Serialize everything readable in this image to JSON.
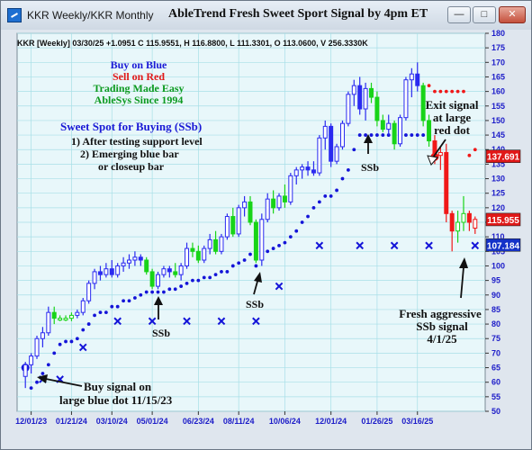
{
  "window": {
    "title": "KKR Weekly/KKR Monthly",
    "heading": "AbleTrend Fresh Sweet Sport Signal by 4pm ET",
    "minimize_icon": "minimize-icon",
    "maximize_icon": "maximize-icon",
    "close_icon": "close-icon"
  },
  "info_line": "KKR [Weekly] 03/30/25 +1.0951 C 115.9551, H 116.8800, L 111.3301, O 113.0600, V 256.3330K",
  "legend_lines": [
    {
      "text": "Buy on Blue",
      "color": "#1a1ad6"
    },
    {
      "text": "Sell on Red",
      "color": "#e01818"
    },
    {
      "text": "Trading Made Easy",
      "color": "#0c9a20"
    },
    {
      "text": "AbleSys Since 1994",
      "color": "#0c9a20"
    }
  ],
  "sweet_spot": {
    "title": "Sweet Spot for Buying (SSb)",
    "line1": "1) After testing support level",
    "line2": "2) Emerging blue bar",
    "line3": "or closeup bar"
  },
  "annotations": {
    "ssb_label": "SSb",
    "exit_line1": "Exit signal",
    "exit_line2": "at large",
    "exit_line3": "red dot",
    "fresh_line1": "Fresh aggressive",
    "fresh_line2": "SSb signal",
    "fresh_line3": "4/1/25",
    "buy_line1": "Buy signal on",
    "buy_line2": "large blue dot 11/15/23"
  },
  "price_tags": [
    {
      "value": "137.691",
      "color": "#e01818"
    },
    {
      "value": "115.955",
      "color": "#e01818"
    },
    {
      "value": "107.184",
      "color": "#1432c8"
    }
  ],
  "colors": {
    "background": "#e8f7fa",
    "grid": "#a7dfe7",
    "blue_bar": "#2a2af0",
    "green_bar": "#18d418",
    "red_bar": "#f01818",
    "dot_blue": "#1414d8",
    "axis_text": "#1c1cc8"
  },
  "chart_data": {
    "type": "candlestick",
    "ylim": [
      50,
      180
    ],
    "y_ticks": [
      50,
      55,
      60,
      65,
      70,
      75,
      80,
      85,
      90,
      95,
      100,
      105,
      110,
      115,
      120,
      125,
      130,
      135,
      140,
      145,
      150,
      155,
      160,
      165,
      170,
      175,
      180
    ],
    "x_tick_labels": [
      "12/01/23",
      "01/21/24",
      "03/10/24",
      "05/01/24",
      "06/23/24",
      "08/11/24",
      "10/06/24",
      "12/01/24",
      "01/26/25",
      "03/16/25"
    ],
    "grid": true,
    "bars": [
      {
        "o": 62,
        "h": 67,
        "l": 58,
        "c": 66,
        "k": "b"
      },
      {
        "o": 66,
        "h": 70,
        "l": 63,
        "c": 69,
        "k": "b"
      },
      {
        "o": 69,
        "h": 76,
        "l": 68,
        "c": 75,
        "k": "b"
      },
      {
        "o": 75,
        "h": 79,
        "l": 72,
        "c": 77,
        "k": "b"
      },
      {
        "o": 77,
        "h": 86,
        "l": 76,
        "c": 84,
        "k": "b"
      },
      {
        "o": 84,
        "h": 86,
        "l": 80,
        "c": 82,
        "k": "g"
      },
      {
        "o": 82,
        "h": 83,
        "l": 81,
        "c": 82,
        "k": "g"
      },
      {
        "o": 82,
        "h": 83,
        "l": 81,
        "c": 82,
        "k": "g"
      },
      {
        "o": 82,
        "h": 84,
        "l": 81,
        "c": 83,
        "k": "g"
      },
      {
        "o": 83,
        "h": 85,
        "l": 82,
        "c": 84,
        "k": "b"
      },
      {
        "o": 84,
        "h": 89,
        "l": 83,
        "c": 88,
        "k": "b"
      },
      {
        "o": 88,
        "h": 95,
        "l": 87,
        "c": 94,
        "k": "b"
      },
      {
        "o": 94,
        "h": 99,
        "l": 92,
        "c": 98,
        "k": "b"
      },
      {
        "o": 98,
        "h": 100,
        "l": 95,
        "c": 97,
        "k": "b"
      },
      {
        "o": 97,
        "h": 101,
        "l": 96,
        "c": 99,
        "k": "b"
      },
      {
        "o": 99,
        "h": 102,
        "l": 96,
        "c": 97,
        "k": "b"
      },
      {
        "o": 97,
        "h": 101,
        "l": 96,
        "c": 100,
        "k": "b"
      },
      {
        "o": 100,
        "h": 103,
        "l": 98,
        "c": 101,
        "k": "b"
      },
      {
        "o": 101,
        "h": 104,
        "l": 99,
        "c": 102,
        "k": "b"
      },
      {
        "o": 102,
        "h": 105,
        "l": 100,
        "c": 103,
        "k": "b"
      },
      {
        "o": 103,
        "h": 104,
        "l": 100,
        "c": 102,
        "k": "b"
      },
      {
        "o": 102,
        "h": 103,
        "l": 97,
        "c": 98,
        "k": "g"
      },
      {
        "o": 98,
        "h": 99,
        "l": 92,
        "c": 93,
        "k": "g"
      },
      {
        "o": 93,
        "h": 98,
        "l": 92,
        "c": 97,
        "k": "b"
      },
      {
        "o": 97,
        "h": 100,
        "l": 96,
        "c": 99,
        "k": "b"
      },
      {
        "o": 99,
        "h": 100,
        "l": 96,
        "c": 98,
        "k": "b"
      },
      {
        "o": 98,
        "h": 101,
        "l": 96,
        "c": 97,
        "k": "g"
      },
      {
        "o": 97,
        "h": 101,
        "l": 95,
        "c": 100,
        "k": "b"
      },
      {
        "o": 100,
        "h": 108,
        "l": 99,
        "c": 106,
        "k": "b"
      },
      {
        "o": 106,
        "h": 108,
        "l": 103,
        "c": 105,
        "k": "g"
      },
      {
        "o": 105,
        "h": 107,
        "l": 101,
        "c": 102,
        "k": "g"
      },
      {
        "o": 102,
        "h": 107,
        "l": 101,
        "c": 106,
        "k": "b"
      },
      {
        "o": 106,
        "h": 111,
        "l": 104,
        "c": 109,
        "k": "b"
      },
      {
        "o": 109,
        "h": 112,
        "l": 104,
        "c": 105,
        "k": "g"
      },
      {
        "o": 105,
        "h": 111,
        "l": 104,
        "c": 110,
        "k": "b"
      },
      {
        "o": 110,
        "h": 118,
        "l": 109,
        "c": 117,
        "k": "b"
      },
      {
        "o": 117,
        "h": 120,
        "l": 110,
        "c": 111,
        "k": "g"
      },
      {
        "o": 111,
        "h": 121,
        "l": 110,
        "c": 120,
        "k": "b"
      },
      {
        "o": 120,
        "h": 124,
        "l": 117,
        "c": 122,
        "k": "b"
      },
      {
        "o": 122,
        "h": 124,
        "l": 114,
        "c": 115,
        "k": "g"
      },
      {
        "o": 115,
        "h": 116,
        "l": 101,
        "c": 102,
        "k": "g"
      },
      {
        "o": 102,
        "h": 118,
        "l": 100,
        "c": 116,
        "k": "b"
      },
      {
        "o": 116,
        "h": 125,
        "l": 115,
        "c": 123,
        "k": "b"
      },
      {
        "o": 123,
        "h": 126,
        "l": 118,
        "c": 120,
        "k": "g"
      },
      {
        "o": 120,
        "h": 125,
        "l": 119,
        "c": 124,
        "k": "b"
      },
      {
        "o": 124,
        "h": 128,
        "l": 120,
        "c": 122,
        "k": "g"
      },
      {
        "o": 122,
        "h": 132,
        "l": 121,
        "c": 131,
        "k": "b"
      },
      {
        "o": 131,
        "h": 134,
        "l": 128,
        "c": 133,
        "k": "b"
      },
      {
        "o": 133,
        "h": 135,
        "l": 130,
        "c": 134,
        "k": "b"
      },
      {
        "o": 134,
        "h": 136,
        "l": 131,
        "c": 133,
        "k": "b"
      },
      {
        "o": 133,
        "h": 136,
        "l": 131,
        "c": 132,
        "k": "b"
      },
      {
        "o": 132,
        "h": 145,
        "l": 131,
        "c": 144,
        "k": "b"
      },
      {
        "o": 144,
        "h": 150,
        "l": 140,
        "c": 148,
        "k": "b"
      },
      {
        "o": 148,
        "h": 149,
        "l": 134,
        "c": 136,
        "k": "b"
      },
      {
        "o": 136,
        "h": 142,
        "l": 135,
        "c": 141,
        "k": "b"
      },
      {
        "o": 141,
        "h": 150,
        "l": 140,
        "c": 149,
        "k": "b"
      },
      {
        "o": 149,
        "h": 160,
        "l": 148,
        "c": 159,
        "k": "b"
      },
      {
        "o": 159,
        "h": 164,
        "l": 155,
        "c": 162,
        "k": "b"
      },
      {
        "o": 162,
        "h": 165,
        "l": 152,
        "c": 154,
        "k": "b"
      },
      {
        "o": 154,
        "h": 163,
        "l": 150,
        "c": 161,
        "k": "b"
      },
      {
        "o": 161,
        "h": 163,
        "l": 156,
        "c": 158,
        "k": "g"
      },
      {
        "o": 158,
        "h": 160,
        "l": 148,
        "c": 150,
        "k": "g"
      },
      {
        "o": 150,
        "h": 152,
        "l": 146,
        "c": 147,
        "k": "g"
      },
      {
        "o": 147,
        "h": 152,
        "l": 145,
        "c": 149,
        "k": "b"
      },
      {
        "o": 149,
        "h": 150,
        "l": 140,
        "c": 142,
        "k": "g"
      },
      {
        "o": 142,
        "h": 152,
        "l": 141,
        "c": 151,
        "k": "b"
      },
      {
        "o": 151,
        "h": 165,
        "l": 150,
        "c": 164,
        "k": "b"
      },
      {
        "o": 164,
        "h": 168,
        "l": 158,
        "c": 166,
        "k": "b"
      },
      {
        "o": 166,
        "h": 170,
        "l": 160,
        "c": 162,
        "k": "b"
      },
      {
        "o": 162,
        "h": 163,
        "l": 148,
        "c": 150,
        "k": "g"
      },
      {
        "o": 150,
        "h": 152,
        "l": 141,
        "c": 143,
        "k": "g"
      },
      {
        "o": 143,
        "h": 145,
        "l": 135,
        "c": 138,
        "k": "r"
      },
      {
        "o": 138,
        "h": 141,
        "l": 133,
        "c": 139,
        "k": "r"
      },
      {
        "o": 139,
        "h": 142,
        "l": 115,
        "c": 118,
        "k": "r"
      },
      {
        "o": 118,
        "h": 119,
        "l": 105,
        "c": 112,
        "k": "r"
      },
      {
        "o": 112,
        "h": 119,
        "l": 108,
        "c": 115,
        "k": "g"
      },
      {
        "o": 115,
        "h": 124,
        "l": 112,
        "c": 118,
        "k": "g"
      },
      {
        "o": 118,
        "h": 119,
        "l": 112,
        "c": 115,
        "k": "r"
      },
      {
        "o": 113,
        "h": 117,
        "l": 111,
        "c": 116,
        "k": "r"
      }
    ],
    "blue_dots": [
      [
        0,
        65
      ],
      [
        1,
        58
      ],
      [
        2,
        60
      ],
      [
        3,
        63
      ],
      [
        4,
        66
      ],
      [
        5,
        70
      ],
      [
        6,
        73
      ],
      [
        7,
        74
      ],
      [
        8,
        74
      ],
      [
        9,
        75
      ],
      [
        10,
        78
      ],
      [
        11,
        80
      ],
      [
        12,
        83
      ],
      [
        13,
        84
      ],
      [
        14,
        84
      ],
      [
        15,
        86
      ],
      [
        16,
        86
      ],
      [
        17,
        88
      ],
      [
        18,
        88
      ],
      [
        19,
        89
      ],
      [
        20,
        90
      ],
      [
        21,
        91
      ],
      [
        22,
        91
      ],
      [
        23,
        91
      ],
      [
        24,
        91
      ],
      [
        25,
        92
      ],
      [
        26,
        92
      ],
      [
        27,
        93
      ],
      [
        28,
        94
      ],
      [
        29,
        95
      ],
      [
        30,
        95
      ],
      [
        31,
        96
      ],
      [
        32,
        96
      ],
      [
        33,
        97
      ],
      [
        34,
        98
      ],
      [
        35,
        98
      ],
      [
        36,
        100
      ],
      [
        37,
        101
      ],
      [
        38,
        102
      ],
      [
        39,
        104
      ],
      [
        40,
        100
      ],
      [
        41,
        103
      ],
      [
        42,
        105
      ],
      [
        43,
        106
      ],
      [
        44,
        107
      ],
      [
        45,
        108
      ],
      [
        46,
        110
      ],
      [
        47,
        112
      ],
      [
        48,
        115
      ],
      [
        49,
        117
      ],
      [
        50,
        120
      ],
      [
        51,
        122
      ],
      [
        52,
        124
      ],
      [
        53,
        124
      ],
      [
        54,
        126
      ],
      [
        55,
        130
      ],
      [
        56,
        133
      ],
      [
        57,
        140
      ],
      [
        58,
        145
      ],
      [
        59,
        145
      ],
      [
        60,
        145
      ],
      [
        61,
        145
      ],
      [
        62,
        145
      ],
      [
        63,
        145
      ],
      [
        64,
        145
      ],
      [
        65,
        145
      ],
      [
        66,
        145
      ],
      [
        67,
        145
      ],
      [
        68,
        145
      ],
      [
        69,
        145
      ]
    ],
    "red_dots": [
      [
        70,
        162
      ],
      [
        71,
        160
      ],
      [
        72,
        160
      ],
      [
        73,
        160
      ],
      [
        74,
        160
      ],
      [
        75,
        160
      ],
      [
        76,
        160
      ],
      [
        77,
        138
      ],
      [
        78,
        140
      ]
    ],
    "x_marks": [
      [
        3,
        61
      ],
      [
        6,
        61
      ],
      [
        10,
        72
      ],
      [
        16,
        81
      ],
      [
        22,
        81
      ],
      [
        28,
        81
      ],
      [
        34,
        81
      ],
      [
        40,
        81
      ],
      [
        44,
        93
      ],
      [
        51,
        107
      ],
      [
        58,
        107
      ],
      [
        64,
        107
      ],
      [
        70,
        107
      ],
      [
        78,
        107
      ]
    ]
  }
}
